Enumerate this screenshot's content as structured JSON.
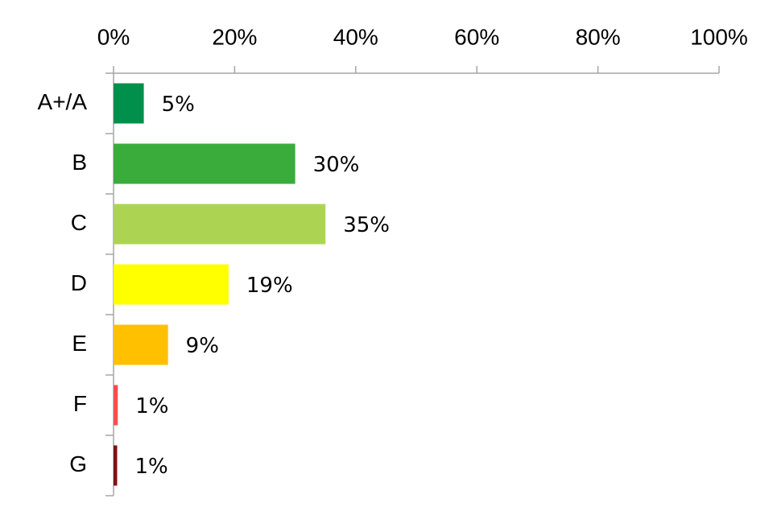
{
  "chart_data": {
    "type": "hbar",
    "categories": [
      "A+/A",
      "B",
      "C",
      "D",
      "E",
      "F",
      "G"
    ],
    "values": [
      5,
      30,
      35,
      19,
      9,
      0.7,
      0.6
    ],
    "value_labels": [
      "5%",
      "30%",
      "35%",
      "19%",
      "9%",
      "1%",
      "1%"
    ],
    "colors": [
      "#00904c",
      "#3aac3c",
      "#acd452",
      "#ffff00",
      "#ffc000",
      "#ff4b4b",
      "#7b1313"
    ],
    "xlim": [
      0,
      100
    ],
    "xticks": [
      {
        "value": 0,
        "label": "0%"
      },
      {
        "value": 20,
        "label": "20%"
      },
      {
        "value": 40,
        "label": "40%"
      },
      {
        "value": 60,
        "label": "60%"
      },
      {
        "value": 80,
        "label": "80%"
      },
      {
        "value": 100,
        "label": "100%"
      }
    ],
    "grid": false
  }
}
